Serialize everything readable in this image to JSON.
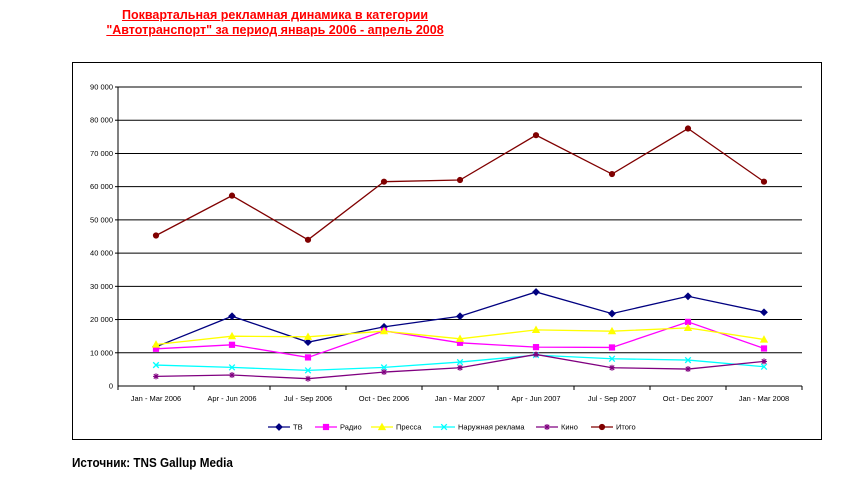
{
  "page": {
    "title_line1": "Поквартальная рекламная динамика в категории",
    "title_line2": "\"Автотранспорт\" за период январь 2006 - апрель 2008",
    "source": "Источник: TNS Gallup Media"
  },
  "chart_data": {
    "type": "line",
    "title": "Поквартальная рекламная динамика в категории \"Автотранспорт\" за период январь 2006 - апрель 2008",
    "categories": [
      "Jan - Mar 2006",
      "Apr - Jun 2006",
      "Jul - Sep 2006",
      "Oct - Dec 2006",
      "Jan - Mar 2007",
      "Apr - Jun 2007",
      "Jul - Sep 2007",
      "Oct - Dec 2007",
      "Jan - Mar 2008"
    ],
    "ylim": [
      0,
      90000
    ],
    "yticks": [
      0,
      10000,
      20000,
      30000,
      40000,
      50000,
      60000,
      70000,
      80000,
      90000
    ],
    "ytick_labels": [
      "0",
      "10 000",
      "20 000",
      "30 000",
      "40 000",
      "50 000",
      "60 000",
      "70 000",
      "80 000",
      "90 000"
    ],
    "grid": true,
    "legend_position": "bottom",
    "series": [
      {
        "name": "ТВ",
        "color": "#000080",
        "marker": "diamond",
        "values": [
          11800,
          21000,
          13200,
          17800,
          21000,
          28300,
          21800,
          27000,
          22200
        ]
      },
      {
        "name": "Радио",
        "color": "#ff00ff",
        "marker": "square",
        "values": [
          11200,
          12400,
          8600,
          16600,
          13000,
          11700,
          11600,
          19300,
          11300
        ]
      },
      {
        "name": "Пресса",
        "color": "#ffff00",
        "marker": "triangle",
        "values": [
          12500,
          15000,
          14800,
          16500,
          14200,
          16900,
          16500,
          17500,
          14000
        ]
      },
      {
        "name": "Наружная реклама",
        "color": "#00ffff",
        "marker": "x",
        "values": [
          6300,
          5600,
          4700,
          5600,
          7200,
          9300,
          8200,
          7800,
          5800
        ]
      },
      {
        "name": "Кино",
        "color": "#800080",
        "marker": "star",
        "values": [
          2900,
          3300,
          2200,
          4200,
          5500,
          9500,
          5500,
          5100,
          7400
        ]
      },
      {
        "name": "Итого",
        "color": "#800000",
        "marker": "circle",
        "values": [
          45300,
          57300,
          44000,
          61500,
          62000,
          75500,
          63800,
          77500,
          61500
        ]
      }
    ]
  }
}
